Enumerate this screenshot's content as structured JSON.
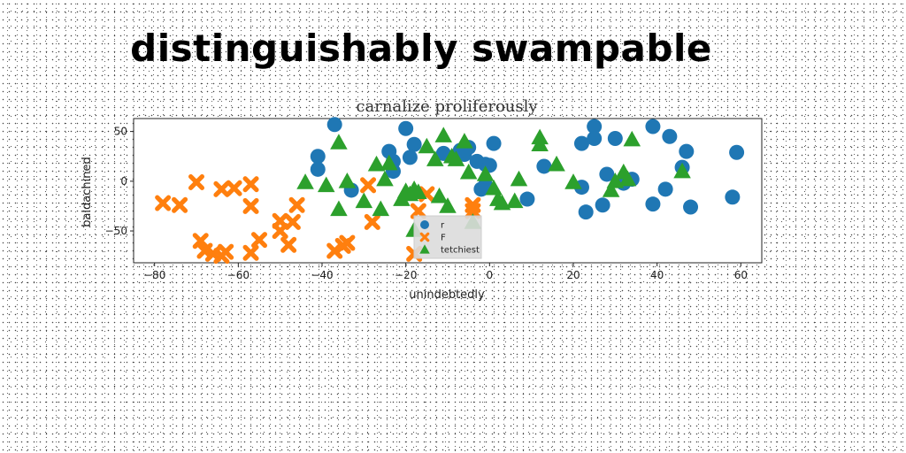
{
  "page": {
    "heading": "distinguishably swampable"
  },
  "chart_data": {
    "type": "scatter",
    "title": "carnalize proliferously",
    "xlabel": "unindebtedly",
    "ylabel": "baldachined",
    "xlim": [
      -85,
      65
    ],
    "ylim": [
      -82,
      63
    ],
    "xticks": [
      -80,
      -60,
      -40,
      -20,
      0,
      20,
      40,
      60
    ],
    "yticks": [
      -50,
      0,
      50
    ],
    "grid": false,
    "legend_position": "lower-center",
    "series": [
      {
        "name": "r",
        "marker": "circle",
        "color": "#1f77b4",
        "points": [
          [
            -37,
            57
          ],
          [
            -20,
            53
          ],
          [
            -41,
            25
          ],
          [
            -41,
            12
          ],
          [
            -18,
            37
          ],
          [
            -24,
            30
          ],
          [
            -23,
            20
          ],
          [
            -23,
            10
          ],
          [
            -19,
            24
          ],
          [
            -33,
            -9
          ],
          [
            -6,
            27
          ],
          [
            -7,
            31
          ],
          [
            -5,
            34
          ],
          [
            -11,
            28
          ],
          [
            -3,
            20
          ],
          [
            -1,
            17
          ],
          [
            0,
            16
          ],
          [
            1,
            38
          ],
          [
            -2,
            -8
          ],
          [
            -1,
            -4
          ],
          [
            9,
            -18
          ],
          [
            13,
            15
          ],
          [
            22,
            38
          ],
          [
            22,
            -6
          ],
          [
            23,
            -31
          ],
          [
            25,
            55
          ],
          [
            25,
            43
          ],
          [
            27,
            -24
          ],
          [
            28,
            7
          ],
          [
            30,
            43
          ],
          [
            32,
            -2
          ],
          [
            34,
            2
          ],
          [
            39,
            55
          ],
          [
            39,
            -23
          ],
          [
            42,
            -8
          ],
          [
            43,
            45
          ],
          [
            46,
            14
          ],
          [
            47,
            30
          ],
          [
            48,
            -26
          ],
          [
            58,
            -16
          ],
          [
            59,
            29
          ]
        ]
      },
      {
        "name": "F",
        "marker": "x",
        "color": "#ff7f0e",
        "points": [
          [
            -78,
            -22
          ],
          [
            -74,
            -24
          ],
          [
            -70,
            -1
          ],
          [
            -69,
            -60
          ],
          [
            -68,
            -70
          ],
          [
            -66,
            -73
          ],
          [
            -64,
            -8
          ],
          [
            -64,
            -75
          ],
          [
            -63,
            -71
          ],
          [
            -61,
            -7
          ],
          [
            -57,
            -3
          ],
          [
            -57,
            -25
          ],
          [
            -57,
            -72
          ],
          [
            -55,
            -59
          ],
          [
            -50,
            -40
          ],
          [
            -50,
            -50
          ],
          [
            -48,
            -64
          ],
          [
            -47,
            -41
          ],
          [
            -46,
            -24
          ],
          [
            -37,
            -70
          ],
          [
            -35,
            -65
          ],
          [
            -34,
            -62
          ],
          [
            -29,
            -4
          ],
          [
            -28,
            -41
          ],
          [
            -18,
            -73
          ],
          [
            -17,
            -30
          ],
          [
            -15,
            -13
          ],
          [
            -4,
            -24
          ],
          [
            -4,
            -30
          ]
        ]
      },
      {
        "name": "tetchiest",
        "marker": "triangle",
        "color": "#2ca02c",
        "points": [
          [
            -44,
            -1
          ],
          [
            -39,
            -4
          ],
          [
            -36,
            39
          ],
          [
            -36,
            -28
          ],
          [
            -34,
            0
          ],
          [
            -27,
            17
          ],
          [
            -26,
            -28
          ],
          [
            -25,
            2
          ],
          [
            -24,
            18
          ],
          [
            -21,
            -18
          ],
          [
            -20,
            -10
          ],
          [
            -19,
            -13
          ],
          [
            -18,
            -8
          ],
          [
            -18,
            -49
          ],
          [
            -17,
            -11
          ],
          [
            -13,
            22
          ],
          [
            -12,
            -15
          ],
          [
            -11,
            46
          ],
          [
            -9,
            25
          ],
          [
            -8,
            22
          ],
          [
            -5,
            9
          ],
          [
            -4,
            -41
          ],
          [
            -1,
            7
          ],
          [
            1,
            -7
          ],
          [
            2,
            -18
          ],
          [
            3,
            -22
          ],
          [
            6,
            -20
          ],
          [
            7,
            2
          ],
          [
            12,
            44
          ],
          [
            12,
            37
          ],
          [
            16,
            17
          ],
          [
            20,
            -1
          ],
          [
            29,
            -9
          ],
          [
            30,
            0
          ],
          [
            32,
            9
          ],
          [
            33,
            2
          ],
          [
            34,
            42
          ],
          [
            46,
            10
          ],
          [
            -6,
            40
          ],
          [
            -10,
            -25
          ],
          [
            -30,
            -20
          ],
          [
            -15,
            35
          ]
        ]
      }
    ]
  }
}
